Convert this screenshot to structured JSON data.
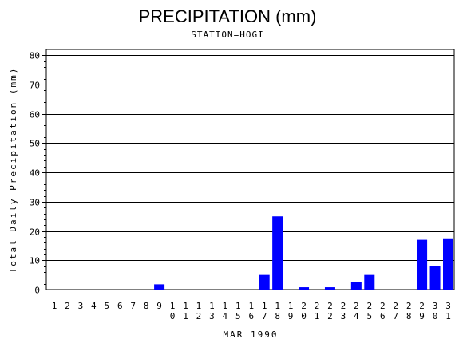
{
  "chart_data": {
    "type": "bar",
    "title": "PRECIPITATION (mm)",
    "subtitle": "STATION=HOGI",
    "xlabel": "MAR 1990",
    "ylabel": "Total Daily Precipitation (mm)",
    "ylim": [
      0,
      82
    ],
    "yticks": [
      0,
      10,
      20,
      30,
      40,
      50,
      60,
      70,
      80
    ],
    "grid": true,
    "bar_color": "#0000ff",
    "categories": [
      "1",
      "2",
      "3",
      "4",
      "5",
      "6",
      "7",
      "8",
      "9",
      "10",
      "11",
      "12",
      "13",
      "14",
      "15",
      "16",
      "17",
      "18",
      "19",
      "20",
      "21",
      "22",
      "23",
      "24",
      "25",
      "26",
      "27",
      "28",
      "29",
      "30",
      "31"
    ],
    "values": [
      0,
      0,
      0,
      0,
      0,
      0,
      0,
      0,
      1.8,
      0,
      0,
      0,
      0,
      0,
      0,
      0,
      5,
      25,
      0,
      0.8,
      0,
      0.8,
      0,
      2.5,
      5,
      0,
      0,
      0,
      17,
      8,
      17.5
    ]
  }
}
